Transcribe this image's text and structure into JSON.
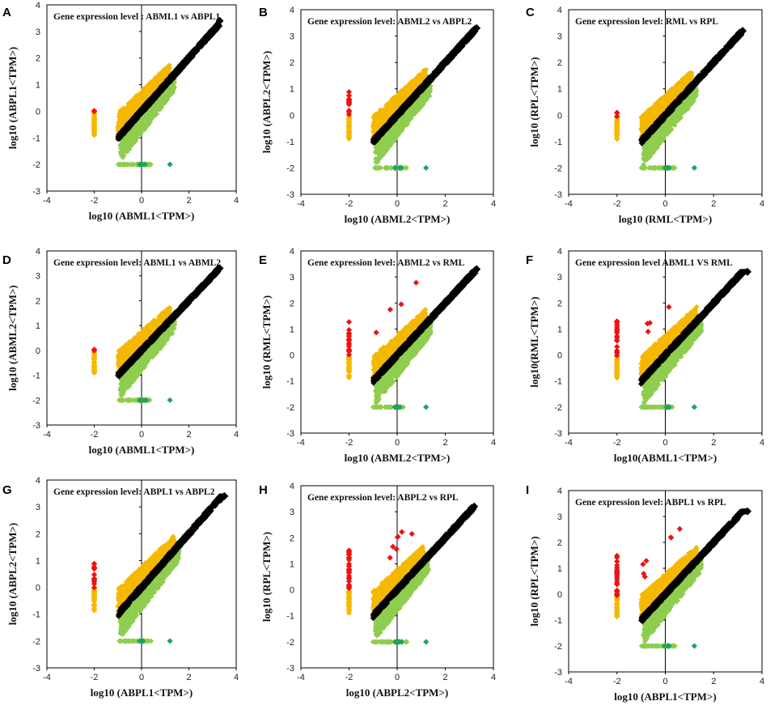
{
  "figure": {
    "description_label": "Gene expression scatter plots"
  },
  "colors": {
    "up": "#f5b800",
    "up_sig": "#ee1111",
    "down": "#8fcd4e",
    "down_sig": "#22a35a",
    "neutral": "#000000"
  },
  "chart_data": [
    {
      "panel": "A",
      "type": "scatter",
      "title": "Gene expression level : ABML1 vs ABPL1",
      "xlabel": "log10 (ABML1<TPM>)",
      "ylabel": "log10 (ABPL1<TPM>)",
      "xlim": [
        -4,
        4
      ],
      "ylim": [
        -3,
        4
      ],
      "xticks": [
        -4,
        -2,
        0,
        2,
        4
      ],
      "yticks": [
        -3,
        -2,
        -1,
        0,
        1,
        2,
        3,
        4
      ],
      "diag_max": [
        3.3,
        3.4
      ],
      "red_left_max": 0.1,
      "red_mid": 0
    },
    {
      "panel": "B",
      "type": "scatter",
      "title": "Gene expression level: ABML2 vs ABPL2",
      "xlabel": "log10 (ABML2<TPM>)",
      "ylabel": "log10 (ABPL2<TPM>)",
      "xlim": [
        -4,
        4
      ],
      "ylim": [
        -3,
        4
      ],
      "xticks": [
        -4,
        -2,
        0,
        2,
        4
      ],
      "yticks": [
        -3,
        -2,
        -1,
        0,
        1,
        2,
        3,
        4
      ],
      "diag_max": [
        3.3,
        3.3
      ],
      "red_left_max": 0.9,
      "red_mid": 0
    },
    {
      "panel": "C",
      "type": "scatter",
      "title": "Gene expression level: RML vs RPL",
      "xlabel": "log10 (RML<TPM>)",
      "ylabel": "log10 (RPL<TPM>)",
      "xlim": [
        -4,
        4
      ],
      "ylim": [
        -3,
        4
      ],
      "xticks": [
        -4,
        -2,
        0,
        2,
        4
      ],
      "yticks": [
        -3,
        -2,
        -1,
        0,
        1,
        2,
        3,
        4
      ],
      "diag_max": [
        3.2,
        3.2
      ],
      "red_left_max": 0.1,
      "red_mid": 0
    },
    {
      "panel": "D",
      "type": "scatter",
      "title": "Gene  expression level: ABML1 vs ABML2",
      "xlabel": "log10 (ABML1<TPM>)",
      "ylabel": "log10 (ABML2<TPM>)",
      "xlim": [
        -4,
        4
      ],
      "ylim": [
        -3,
        4
      ],
      "xticks": [
        -4,
        -2,
        0,
        2,
        4
      ],
      "yticks": [
        -3,
        -2,
        -1,
        0,
        1,
        2,
        3,
        4
      ],
      "diag_max": [
        3.3,
        3.3
      ],
      "red_left_max": 0.1,
      "red_mid": 0
    },
    {
      "panel": "E",
      "type": "scatter",
      "title": "Gene expression level: ABML2 vs RML",
      "xlabel": "log10 (ABML2<TPM>)",
      "ylabel": "log10 (RML<TPM>)",
      "xlim": [
        -4,
        4
      ],
      "ylim": [
        -3,
        4
      ],
      "xticks": [
        -4,
        -2,
        0,
        2,
        4
      ],
      "yticks": [
        -3,
        -2,
        -1,
        0,
        1,
        2,
        3,
        4
      ],
      "diag_max": [
        3.3,
        3.3
      ],
      "red_left_max": 1.3,
      "red_mid": 4
    },
    {
      "panel": "F",
      "type": "scatter",
      "title": "Gene expression level ABML1 VS RML",
      "xlabel": "log10(ABML1<TPM>)",
      "ylabel": "log10(RML<TPM>)",
      "xlim": [
        -4,
        4
      ],
      "ylim": [
        -3,
        4
      ],
      "xticks": [
        -4,
        -2,
        0,
        2,
        4
      ],
      "yticks": [
        -3,
        -2,
        -1,
        0,
        1,
        2,
        3,
        4
      ],
      "diag_max": [
        3.4,
        3.2
      ],
      "red_left_max": 1.3,
      "red_mid": 4
    },
    {
      "panel": "G",
      "type": "scatter",
      "title": "Gene expression level: ABPL1 vs ABPL2",
      "xlabel": "log10 (ABPL1<TPM>)",
      "ylabel": "log10 (ABPL2<TPM>)",
      "xlim": [
        -4,
        4
      ],
      "ylim": [
        -3,
        4
      ],
      "xticks": [
        -4,
        -2,
        0,
        2,
        4
      ],
      "yticks": [
        -3,
        -2,
        -1,
        0,
        1,
        2,
        3,
        4
      ],
      "diag_max": [
        3.5,
        3.4
      ],
      "red_left_max": 0.9,
      "red_mid": 0
    },
    {
      "panel": "H",
      "type": "scatter",
      "title": "Gene expression level: ABPL2 vs RPL",
      "xlabel": "log10 (ABPL2<TPM>)",
      "ylabel": "log10 (RPL<TPM>)",
      "xlim": [
        -4,
        4
      ],
      "ylim": [
        -3,
        4
      ],
      "xticks": [
        -4,
        -2,
        0,
        2,
        4
      ],
      "yticks": [
        -3,
        -2,
        -1,
        0,
        1,
        2,
        3,
        4
      ],
      "diag_max": [
        3.2,
        3.2
      ],
      "red_left_max": 1.6,
      "red_mid": 6
    },
    {
      "panel": "I",
      "type": "scatter",
      "title": "Gene expression level: ABPL1 vs RPL",
      "xlabel": "log10 (ABPL1<TPM>)",
      "ylabel": "log10 (RPL<TPM>)",
      "xlim": [
        -4,
        4
      ],
      "ylim": [
        -3,
        4
      ],
      "xticks": [
        -4,
        -2,
        0,
        2,
        4
      ],
      "yticks": [
        -3,
        -2,
        -1,
        0,
        1,
        2,
        3,
        4
      ],
      "diag_max": [
        3.4,
        3.2
      ],
      "red_left_max": 1.6,
      "red_mid": 7
    }
  ]
}
